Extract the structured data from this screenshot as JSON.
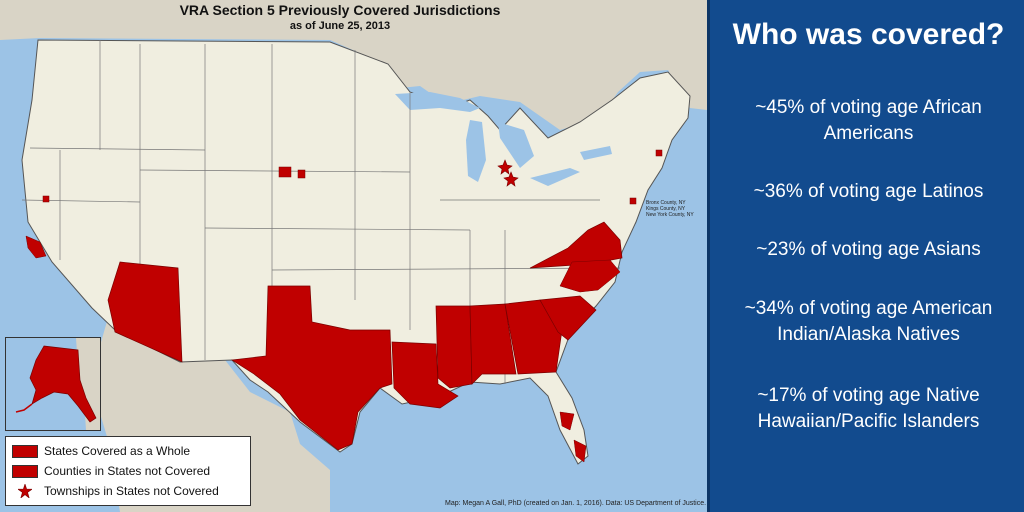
{
  "map": {
    "title": "VRA Section 5 Previously Covered Jurisdictions",
    "subtitle": "as of June 25, 2013",
    "ny_note": [
      "Bronx County, NY",
      "Kings County, NY",
      "New York County, NY"
    ],
    "credit": "Map: Megan A Gall, PhD (created on Jan. 1, 2016). Data: US Department of Justice.",
    "colors": {
      "water": "#9cc3e6",
      "land": "#f0eee0",
      "neighbor_land": "#d9d4c6",
      "covered": "#c00000",
      "border": "#555555"
    }
  },
  "legend": {
    "items": [
      {
        "label": "States Covered as a Whole",
        "symbol": "square"
      },
      {
        "label": "Counties in States not Covered",
        "symbol": "square"
      },
      {
        "label": "Townships in States not Covered",
        "symbol": "star"
      }
    ]
  },
  "info": {
    "title": "Who was covered?",
    "stats": [
      [
        "~45% of voting age African",
        "Americans"
      ],
      [
        "~36% of voting age Latinos"
      ],
      [
        "~23% of voting age Asians"
      ],
      [
        "~34% of voting age American",
        "Indian/Alaska Natives"
      ],
      [
        "~17% of voting age Native",
        "Hawaiian/Pacific Islanders"
      ]
    ]
  }
}
